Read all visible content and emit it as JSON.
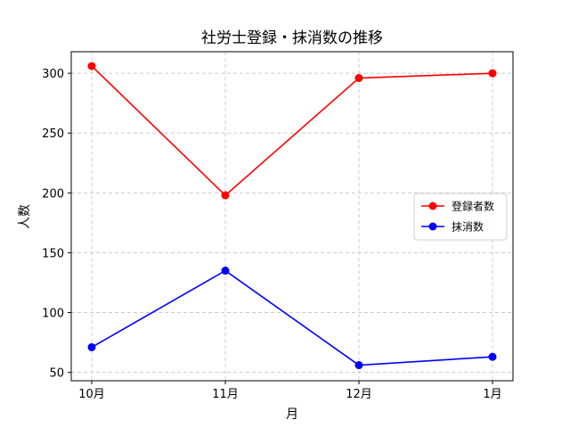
{
  "chart_data": {
    "type": "line",
    "title": "社労士登録・抹消数の推移",
    "xlabel": "月",
    "ylabel": "人数",
    "categories": [
      "10月",
      "11月",
      "12月",
      "1月"
    ],
    "yticks": [
      50,
      100,
      150,
      200,
      250,
      300
    ],
    "ylim": [
      43,
      318
    ],
    "grid": true,
    "legend_position": "center-right",
    "series": [
      {
        "name": "登録者数",
        "color": "#ff0000",
        "values": [
          306,
          198,
          296,
          300
        ]
      },
      {
        "name": "抹消数",
        "color": "#0000ff",
        "values": [
          71,
          135,
          56,
          63
        ]
      }
    ]
  }
}
